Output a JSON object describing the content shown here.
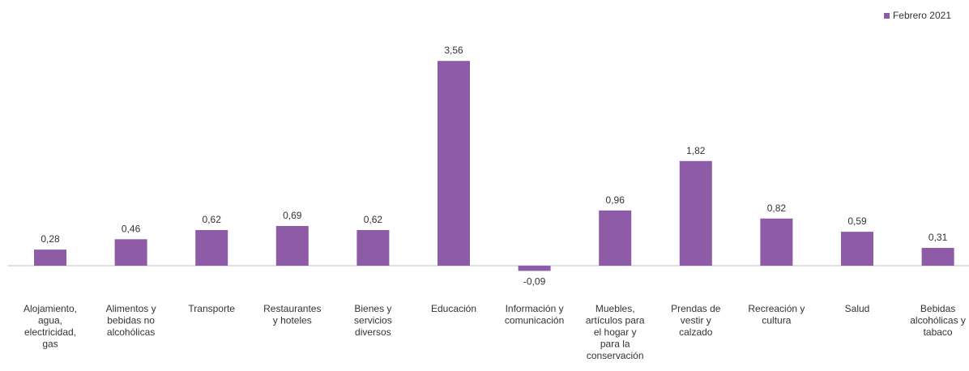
{
  "chart_data": {
    "type": "bar",
    "title": "",
    "xlabel": "",
    "ylabel": "",
    "legend": {
      "position": "top-right"
    },
    "grid": false,
    "categories": [
      "Alojamiento, agua, electricidad, gas",
      "Alimentos y bebidas no alcohólicas",
      "Transporte",
      "Restaurantes y hoteles",
      "Bienes y servicios diversos",
      "Educación",
      "Información y comunicación",
      "Muebles, artículos para el hogar y para la conservación",
      "Prendas de vestir y calzado",
      "Recreación y cultura",
      "Salud",
      "Bebidas alcohólicas y tabaco"
    ],
    "category_label_lines": [
      [
        "Alojamiento,",
        "agua,",
        "electricidad,",
        "gas"
      ],
      [
        "Alimentos y",
        "bebidas no",
        "alcohólicas"
      ],
      [
        "Transporte"
      ],
      [
        "Restaurantes",
        "y hoteles"
      ],
      [
        "Bienes y",
        "servicios",
        "diversos"
      ],
      [
        "Educación"
      ],
      [
        "Información y",
        "comunicación"
      ],
      [
        "Muebles,",
        "artículos para",
        "el hogar y",
        "para la",
        "conservación"
      ],
      [
        "Prendas de",
        "vestir y",
        "calzado"
      ],
      [
        "Recreación y",
        "cultura"
      ],
      [
        "Salud"
      ],
      [
        "Bebidas",
        "alcohólicas y",
        "tabaco"
      ]
    ],
    "series": [
      {
        "name": "Febrero 2021",
        "color": "#8e5ba6",
        "values": [
          0.28,
          0.46,
          0.62,
          0.69,
          0.62,
          3.56,
          -0.09,
          0.96,
          1.82,
          0.82,
          0.59,
          0.31
        ],
        "value_labels": [
          "0,28",
          "0,46",
          "0,62",
          "0,69",
          "0,62",
          "3,56",
          "-0,09",
          "0,96",
          "1,82",
          "0,82",
          "0,59",
          "0,31"
        ]
      }
    ],
    "ylim": [
      -0.3,
      3.9
    ]
  }
}
